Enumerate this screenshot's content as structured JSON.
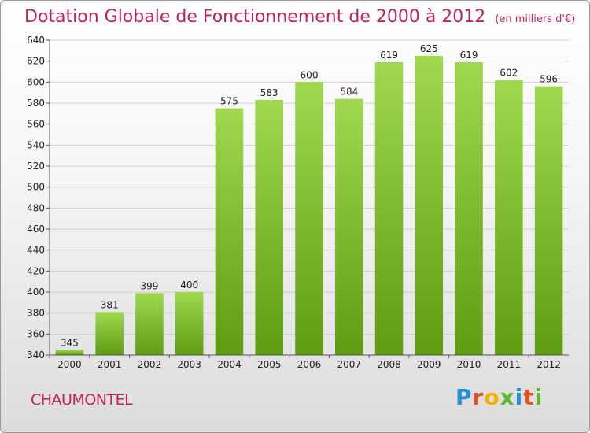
{
  "title": "Dotation Globale de Fonctionnement de 2000 à 2012",
  "unit": "(en milliers d'€)",
  "commune": "CHAUMONTEL",
  "logo": {
    "letters": [
      "P",
      "r",
      "o",
      "x",
      "i",
      "t",
      "i"
    ],
    "colors": [
      "#2a8fd6",
      "#e8501f",
      "#f2b300",
      "#5cb82e",
      "#2a8fd6",
      "#e8501f",
      "#5cb82e"
    ]
  },
  "chart_data": {
    "type": "bar",
    "categories": [
      "2000",
      "2001",
      "2002",
      "2003",
      "2004",
      "2005",
      "2006",
      "2007",
      "2008",
      "2009",
      "2010",
      "2011",
      "2012"
    ],
    "values": [
      345,
      381,
      399,
      400,
      575,
      583,
      600,
      584,
      619,
      625,
      619,
      602,
      596
    ],
    "value_labels": [
      "345",
      "381",
      "399",
      "400",
      "575",
      "583",
      "600",
      "584",
      "619",
      "625",
      "619",
      "602",
      "596"
    ],
    "ylim": [
      340,
      640
    ],
    "yticks": [
      340,
      360,
      380,
      400,
      420,
      440,
      460,
      480,
      500,
      520,
      540,
      560,
      580,
      600,
      620,
      640
    ],
    "ytick_labels": [
      "340",
      "360",
      "380",
      "400",
      "420",
      "440",
      "460",
      "480",
      "500",
      "520",
      "540",
      "560",
      "580",
      "600",
      "620",
      "640"
    ],
    "grid": true,
    "bar_color_top": "#9fd94f",
    "bar_color_bottom": "#5e9c12"
  }
}
